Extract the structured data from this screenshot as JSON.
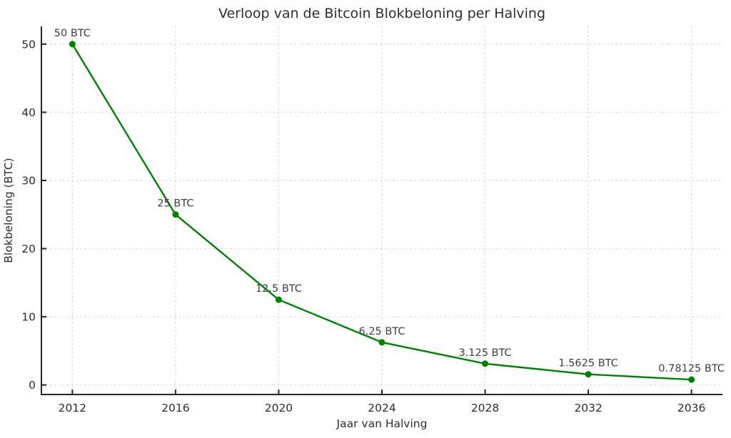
{
  "figure": {
    "background": "#ffffff"
  },
  "chart_data": {
    "type": "line",
    "title": "Verloop van de Bitcoin Blokbeloning per Halving",
    "xlabel": "Jaar van Halving",
    "ylabel": "Blokbeloning (BTC)",
    "x": [
      2012,
      2016,
      2020,
      2024,
      2028,
      2032,
      2036
    ],
    "y": [
      50,
      25,
      12.5,
      6.25,
      3.125,
      1.5625,
      0.78125
    ],
    "point_labels": [
      "50 BTC",
      "25 BTC",
      "12.5 BTC",
      "6.25 BTC",
      "3.125 BTC",
      "1.5625 BTC",
      "0.78125 BTC"
    ],
    "x_tick_labels": [
      "2012",
      "2016",
      "2020",
      "2024",
      "2028",
      "2032",
      "2036"
    ],
    "x_tick_values": [
      2012,
      2016,
      2020,
      2024,
      2028,
      2032,
      2036
    ],
    "y_tick_labels": [
      "0",
      "10",
      "20",
      "30",
      "40",
      "50"
    ],
    "y_tick_values": [
      0,
      10,
      20,
      30,
      40,
      50
    ],
    "xlim": [
      2010.8,
      2037.2
    ],
    "ylim": [
      -1.4,
      52.6
    ],
    "grid": true,
    "grid_style": "dashed",
    "legend": null,
    "marker": "circle",
    "colors": {
      "line": "#008000",
      "marker": "#008000",
      "grid": "#d4d4d4",
      "axis": "#262626",
      "text": "#2e2e2e",
      "annotation": "#3f3f3f",
      "background": "#ffffff"
    }
  }
}
